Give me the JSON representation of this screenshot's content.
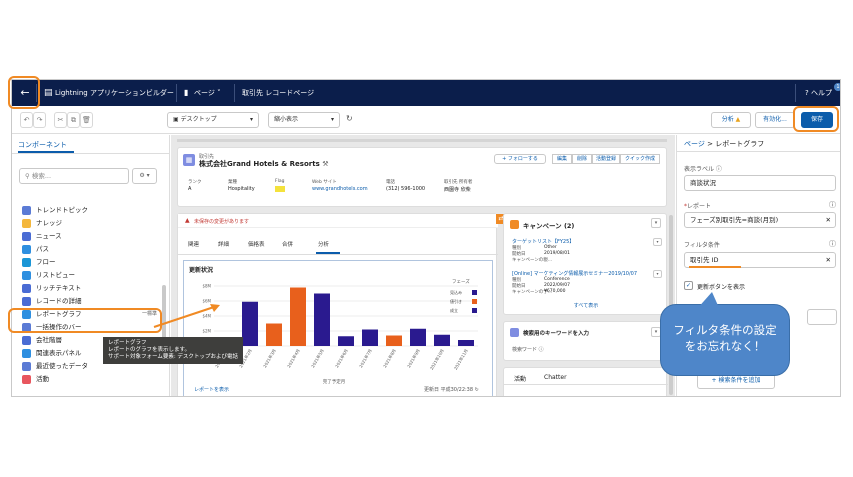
{
  "topbar": {
    "back_icon": "arrow-left-icon",
    "app_title": "Lightning アプリケーションビルダー",
    "page_menu": "ページ",
    "page_name": "取引先 レコードページ",
    "help": "ヘルプ"
  },
  "toolbar": {
    "device": "デスクトップ",
    "view": "縮小表示",
    "analysis": "分析",
    "activate": "有効化...",
    "save": "保存"
  },
  "left": {
    "header": "コンポーネント",
    "search_placeholder": "検索...",
    "items": [
      {
        "label": "トレンドトピック",
        "color": "#5b7bd5"
      },
      {
        "label": "ナレッジ",
        "color": "#f4b73c"
      },
      {
        "label": "ニュース",
        "color": "#4a6cd4"
      },
      {
        "label": "パス",
        "color": "#2e8fe0"
      },
      {
        "label": "フロー",
        "color": "#1b96d6"
      },
      {
        "label": "リストビュー",
        "color": "#2e8fe0"
      },
      {
        "label": "リッチテキスト",
        "color": "#4a6cd4"
      },
      {
        "label": "レコードの詳細",
        "color": "#4a6cd4"
      },
      {
        "label": "レポートグラフ",
        "color": "#2e8fe0"
      },
      {
        "label": "一括操作のバー",
        "color": "#5b7bd5"
      },
      {
        "label": "会社階層",
        "color": "#4a6cd4"
      },
      {
        "label": "関連表示パネル",
        "color": "#2e8fe0"
      },
      {
        "label": "最近使ったデータ",
        "color": "#5b7bd5"
      },
      {
        "label": "活動",
        "color": "#e8565e"
      }
    ],
    "report_chart_badge": "一標準",
    "tooltip": {
      "title": "レポートグラフ",
      "line1": "レポートのグラフを表示します。",
      "line2": "サポート対象フォーム要素: デスクトップおよび電話"
    }
  },
  "record": {
    "object_label": "取引先",
    "name": "株式会社Grand Hotels & Resorts",
    "follow": "+ フォローする",
    "actions": [
      "編集",
      "削除",
      "活動登録",
      "クイック作成"
    ],
    "fields": [
      {
        "label": "ランク",
        "value": "A"
      },
      {
        "label": "業種",
        "value": "Hospitality"
      },
      {
        "label": "Flag",
        "value": ""
      },
      {
        "label": "Web サイト",
        "value": "www.grandhotels.com"
      },
      {
        "label": "電話",
        "value": "(312) 596-1000"
      },
      {
        "label": "取引先 所有者",
        "value": "西園寺 欣柴"
      }
    ],
    "warning": "未保存の変更があります",
    "tabs": [
      "関連",
      "詳細",
      "価格表",
      "合併",
      "分析"
    ],
    "report_card_title": "更新状況",
    "report_footer_left": "レポートを表示",
    "report_footer_right": "更新日 平成30/22:38"
  },
  "chart_data": {
    "type": "bar",
    "title": "更新状況",
    "xlabel": "完了予定月",
    "y_ticks": [
      "$0",
      "$2M",
      "$4M",
      "$6M",
      "$8M"
    ],
    "categories": [
      "2021年1月",
      "2021年2月",
      "2021年3月",
      "2021年4月",
      "2021年5月",
      "2021年6月",
      "2021年7月",
      "2021年8月",
      "2021年9月",
      "2021年10月",
      "2021年11月"
    ],
    "values": [
      1.0,
      5.9,
      3.0,
      7.8,
      7.0,
      1.3,
      2.2,
      1.4,
      2.3,
      1.5,
      0.8
    ],
    "colors": [
      "#2a1a8f",
      "#2a1a8f",
      "#e8601c",
      "#e8601c",
      "#2a1a8f",
      "#2a1a8f",
      "#2a1a8f",
      "#e8601c",
      "#2a1a8f",
      "#2a1a8f",
      "#2a1a8f"
    ],
    "ylim": [
      0,
      8
    ],
    "legend_title": "フェーズ",
    "legend": [
      {
        "name": "見込み",
        "color": "#2a1a8f"
      },
      {
        "name": "値引き",
        "color": "#e8601c"
      },
      {
        "name": "成立",
        "color": "#2a1a8f"
      }
    ]
  },
  "campaign": {
    "title": "キャンペーン (2)",
    "items": [
      {
        "name": "ターゲットリスト【FY25】",
        "l1": "種別",
        "v1": "Other",
        "l2": "開始日",
        "v2": "2019/08/01",
        "l3": "キャンペーンの親..."
      },
      {
        "name": "[Online] マーケティング情報展示セミナー2019/10/07",
        "l1": "種別",
        "v1": "Conference",
        "l2": "開始日",
        "v2": "2022/09/07",
        "l3": "キャンペーンの予...",
        "v3": "¥670,000"
      }
    ],
    "view_all": "すべて表示"
  },
  "search_card": {
    "title": "検索用のキーワードを入力",
    "label": "検索ワード"
  },
  "activity": {
    "tabs": [
      "活動",
      "Chatter"
    ]
  },
  "right": {
    "breadcrumb_page": "ページ",
    "breadcrumb_current": "レポートグラフ",
    "label_label": "表示ラベル",
    "label_value": "商談状況",
    "report_label": "レポート",
    "report_value": "フェーズ別取引先=商談(月別)",
    "filter_label": "フィルタ条件",
    "filter_value": "取引先 ID",
    "refresh_button": "更新ボタンを表示",
    "add_filter": "+ 検索条件を追加"
  },
  "callout": {
    "line1": "フィルタ条件の設定",
    "line2": "をお忘れなく！"
  }
}
